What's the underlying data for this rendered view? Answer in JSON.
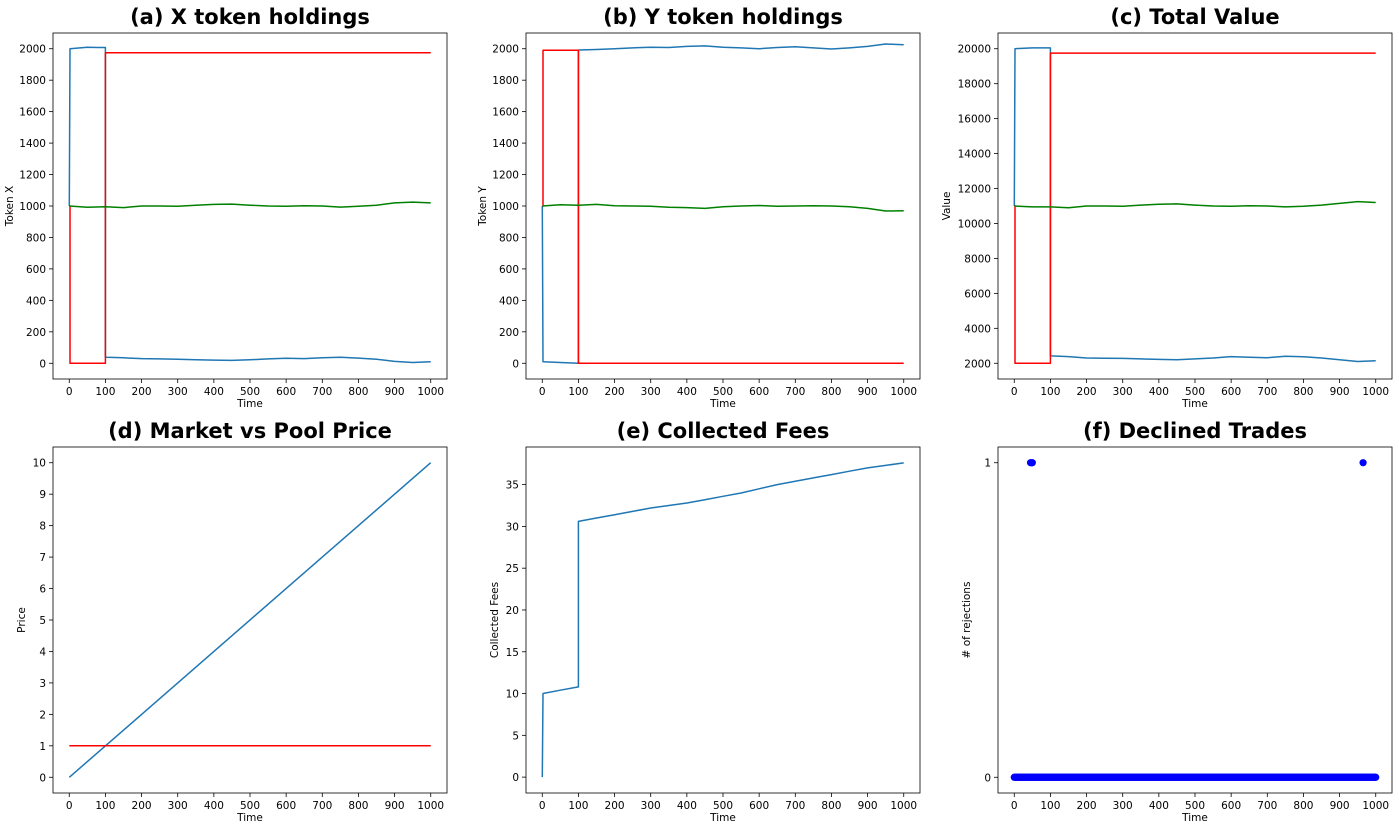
{
  "chart_data": [
    {
      "type": "line",
      "title": "(a) X token holdings",
      "xlabel": "Time",
      "ylabel": "Token X",
      "xlim": [
        -45,
        1045
      ],
      "ylim": [
        -100,
        2100
      ],
      "xticks": [
        0,
        100,
        200,
        300,
        400,
        500,
        600,
        700,
        800,
        900,
        1000
      ],
      "yticks": [
        0,
        200,
        400,
        600,
        800,
        1000,
        1200,
        1400,
        1600,
        1800,
        2000
      ],
      "series": [
        {
          "color": "#1f77b4",
          "x": [
            0,
            2,
            50,
            80,
            100,
            100,
            102,
            150,
            200,
            250,
            300,
            350,
            400,
            450,
            500,
            550,
            600,
            650,
            700,
            750,
            800,
            850,
            900,
            950,
            1000
          ],
          "y": [
            1000,
            2000,
            2010,
            2008,
            2008,
            40,
            38,
            35,
            30,
            28,
            25,
            22,
            20,
            18,
            22,
            28,
            32,
            30,
            35,
            38,
            33,
            26,
            12,
            5,
            10
          ]
        },
        {
          "color": "#ff0000",
          "x": [
            0,
            2,
            2,
            100,
            100,
            1000
          ],
          "y": [
            1000,
            1000,
            0,
            0,
            1975,
            1975
          ]
        },
        {
          "color": "#008000",
          "x": [
            0,
            50,
            100,
            150,
            200,
            250,
            300,
            350,
            400,
            450,
            500,
            550,
            600,
            650,
            700,
            750,
            800,
            850,
            900,
            950,
            1000
          ],
          "y": [
            1000,
            992,
            995,
            990,
            1000,
            1000,
            998,
            1005,
            1010,
            1012,
            1005,
            1000,
            998,
            1002,
            1000,
            993,
            998,
            1005,
            1020,
            1025,
            1020
          ]
        }
      ]
    },
    {
      "type": "line",
      "title": "(b) Y token holdings",
      "xlabel": "Time",
      "ylabel": "Token Y",
      "xlim": [
        -45,
        1045
      ],
      "ylim": [
        -100,
        2100
      ],
      "xticks": [
        0,
        100,
        200,
        300,
        400,
        500,
        600,
        700,
        800,
        900,
        1000
      ],
      "yticks": [
        0,
        200,
        400,
        600,
        800,
        1000,
        1200,
        1400,
        1600,
        1800,
        2000
      ],
      "series": [
        {
          "color": "#1f77b4",
          "x": [
            0,
            2,
            50,
            100,
            100,
            102,
            150,
            200,
            250,
            300,
            350,
            400,
            450,
            500,
            550,
            600,
            650,
            700,
            750,
            800,
            850,
            900,
            950,
            1000
          ],
          "y": [
            1000,
            10,
            5,
            0,
            1990,
            1992,
            1995,
            2000,
            2005,
            2010,
            2008,
            2015,
            2018,
            2010,
            2005,
            2000,
            2008,
            2012,
            2005,
            1998,
            2005,
            2015,
            2030,
            2025
          ]
        },
        {
          "color": "#ff0000",
          "x": [
            0,
            2,
            2,
            100,
            100,
            1000
          ],
          "y": [
            1000,
            1000,
            1990,
            1990,
            0,
            0
          ]
        },
        {
          "color": "#008000",
          "x": [
            0,
            50,
            100,
            150,
            200,
            250,
            300,
            350,
            400,
            450,
            500,
            550,
            600,
            650,
            700,
            750,
            800,
            850,
            900,
            950,
            1000
          ],
          "y": [
            1000,
            1008,
            1005,
            1010,
            1002,
            1000,
            998,
            992,
            990,
            985,
            995,
            1000,
            1003,
            998,
            1000,
            1002,
            1000,
            995,
            985,
            968,
            970
          ]
        }
      ]
    },
    {
      "type": "line",
      "title": "(c) Total Value",
      "xlabel": "Time",
      "ylabel": "Value",
      "xlim": [
        -45,
        1045
      ],
      "ylim": [
        1100,
        20900
      ],
      "xticks": [
        0,
        100,
        200,
        300,
        400,
        500,
        600,
        700,
        800,
        900,
        1000
      ],
      "yticks": [
        2000,
        4000,
        6000,
        8000,
        10000,
        12000,
        14000,
        16000,
        18000,
        20000
      ],
      "series": [
        {
          "color": "#1f77b4",
          "x": [
            0,
            2,
            50,
            100,
            100,
            102,
            150,
            200,
            250,
            300,
            350,
            400,
            450,
            500,
            550,
            600,
            650,
            700,
            750,
            800,
            850,
            900,
            950,
            1000
          ],
          "y": [
            11000,
            20000,
            20050,
            20050,
            2450,
            2420,
            2380,
            2300,
            2290,
            2280,
            2250,
            2220,
            2200,
            2250,
            2300,
            2380,
            2350,
            2320,
            2400,
            2370,
            2300,
            2200,
            2100,
            2150
          ]
        },
        {
          "color": "#ff0000",
          "x": [
            0,
            2,
            2,
            100,
            100,
            1000
          ],
          "y": [
            11000,
            11000,
            2000,
            2000,
            19750,
            19750
          ]
        },
        {
          "color": "#008000",
          "x": [
            0,
            50,
            100,
            150,
            200,
            250,
            300,
            350,
            400,
            450,
            500,
            550,
            600,
            650,
            700,
            750,
            800,
            850,
            900,
            950,
            1000
          ],
          "y": [
            11000,
            10950,
            10950,
            10900,
            11000,
            11000,
            10980,
            11050,
            11100,
            11120,
            11050,
            11000,
            10980,
            11020,
            11000,
            10950,
            10980,
            11050,
            11150,
            11250,
            11200
          ]
        }
      ]
    },
    {
      "type": "line",
      "title": "(d) Market vs Pool Price",
      "xlabel": "Time",
      "ylabel": "Price",
      "xlim": [
        -45,
        1045
      ],
      "ylim": [
        -0.5,
        10.5
      ],
      "xticks": [
        0,
        100,
        200,
        300,
        400,
        500,
        600,
        700,
        800,
        900,
        1000
      ],
      "yticks": [
        0,
        1,
        2,
        3,
        4,
        5,
        6,
        7,
        8,
        9,
        10
      ],
      "series": [
        {
          "color": "#1f77b4",
          "x": [
            0,
            1000
          ],
          "y": [
            0,
            10
          ]
        },
        {
          "color": "#ff0000",
          "x": [
            0,
            1000
          ],
          "y": [
            1,
            1
          ]
        }
      ]
    },
    {
      "type": "line",
      "title": "(e) Collected Fees",
      "xlabel": "Time",
      "ylabel": "Collected Fees",
      "xlim": [
        -45,
        1045
      ],
      "ylim": [
        -1.9,
        39.5
      ],
      "xticks": [
        0,
        100,
        200,
        300,
        400,
        500,
        600,
        700,
        800,
        900,
        1000
      ],
      "yticks": [
        0,
        5,
        10,
        15,
        20,
        25,
        30,
        35
      ],
      "series": [
        {
          "color": "#1f77b4",
          "x": [
            0,
            2,
            50,
            100,
            100,
            150,
            200,
            250,
            300,
            350,
            400,
            450,
            500,
            550,
            600,
            650,
            700,
            750,
            800,
            850,
            900,
            950,
            1000
          ],
          "y": [
            0,
            10,
            10.4,
            10.8,
            30.6,
            31.0,
            31.4,
            31.8,
            32.2,
            32.5,
            32.8,
            33.2,
            33.6,
            34.0,
            34.5,
            35.0,
            35.4,
            35.8,
            36.2,
            36.6,
            37.0,
            37.3,
            37.6
          ]
        }
      ]
    },
    {
      "type": "scatter",
      "title": "(f) Declined Trades",
      "xlabel": "Time",
      "ylabel": "# of rejections",
      "xlim": [
        -45,
        1045
      ],
      "ylim": [
        -0.05,
        1.05
      ],
      "xticks": [
        0,
        100,
        200,
        300,
        400,
        500,
        600,
        700,
        800,
        900,
        1000
      ],
      "yticks": [
        0,
        1
      ],
      "series": [
        {
          "color": "#0000ff",
          "ones_x": [
            45,
            48,
            50,
            965
          ],
          "zeros_range": [
            0,
            1000
          ]
        }
      ]
    }
  ]
}
